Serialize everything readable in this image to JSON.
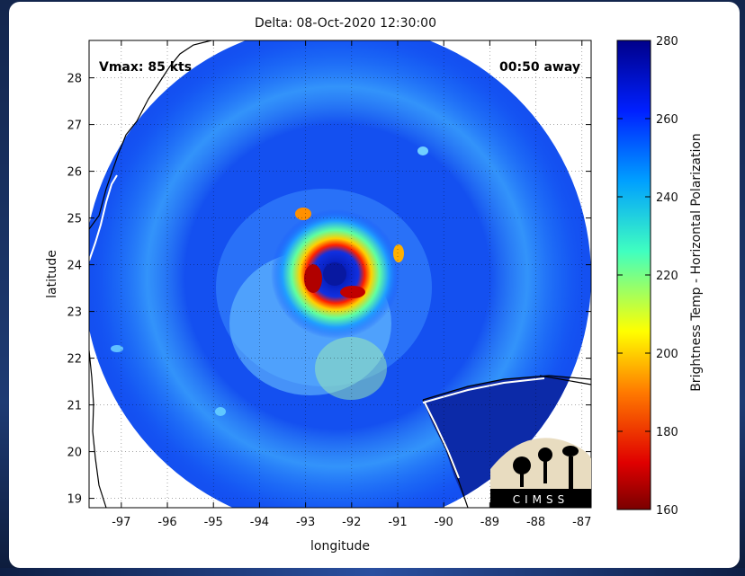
{
  "chart_data": {
    "type": "heatmap",
    "title": "Delta: 08-Oct-2020 12:30:00",
    "xlabel": "longitude",
    "ylabel": "latitude",
    "xlim": [
      -97.7,
      -86.8
    ],
    "ylim": [
      18.8,
      28.8
    ],
    "x_ticks": [
      -97,
      -96,
      -95,
      -94,
      -93,
      -92,
      -91,
      -90,
      -89,
      -88,
      -87
    ],
    "y_ticks": [
      19,
      20,
      21,
      22,
      23,
      24,
      25,
      26,
      27,
      28
    ],
    "grid": true,
    "annotations": {
      "vmax": "Vmax: 85 kts",
      "time_away": "00:50 away"
    },
    "colorbar": {
      "label": "Brightness Temp - Horizontal Polarization",
      "range": [
        160,
        280
      ],
      "ticks": [
        160,
        180,
        200,
        220,
        240,
        260,
        280
      ],
      "colors": [
        "#7a0000",
        "#e00000",
        "#ff7a00",
        "#ffff00",
        "#40ffc0",
        "#00a0ff",
        "#0020ff",
        "#00008a"
      ]
    },
    "storm_center": {
      "lon": -92.3,
      "lat": 23.9
    },
    "eye_min_brightness_temp": 165,
    "logo": "CIMSS"
  }
}
